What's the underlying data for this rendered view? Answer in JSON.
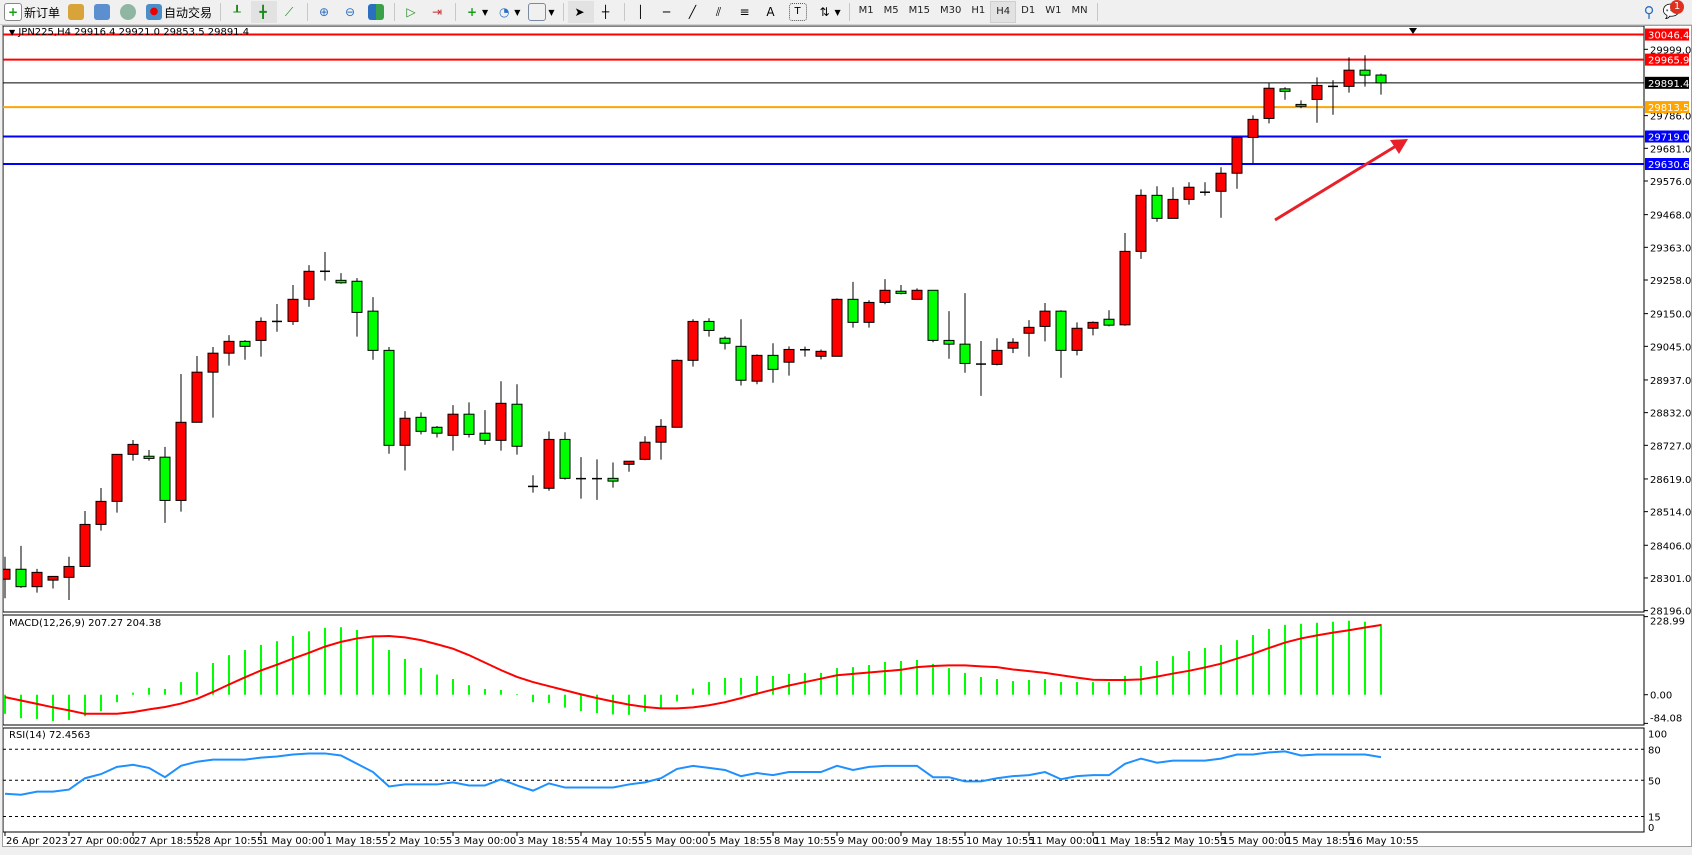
{
  "toolbar": {
    "new_order": "新订单",
    "auto_trading": "自动交易",
    "timeframes": [
      "M1",
      "M5",
      "M15",
      "M30",
      "H1",
      "H4",
      "D1",
      "W1",
      "MN"
    ],
    "active_timeframe": "H4",
    "notification_count": "1"
  },
  "chart": {
    "symbol_header": "JPN225,H4",
    "ohlc_header": "29916.4 29921.0 29853.5 29891.4",
    "colors": {
      "bull": "#ff0000",
      "bear": "#00ff00",
      "macd_hist": "#00ff00",
      "signal": "#ff0000",
      "rsi": "#1e90ff",
      "arrow": "#e8202a"
    },
    "levels": [
      {
        "price": "30046.4",
        "color": "#ff0000"
      },
      {
        "price": "29965.9",
        "color": "#ff0000"
      },
      {
        "price": "29891.4",
        "color": "#000000"
      },
      {
        "price": "29813.5",
        "color": "#ffa500"
      },
      {
        "price": "29719.0",
        "color": "#0000ff"
      },
      {
        "price": "29630.6",
        "color": "#0000ff"
      }
    ],
    "price_ticks": [
      "29999.0",
      "29786.0",
      "29681.0",
      "29576.0",
      "29468.0",
      "29363.0",
      "29258.0",
      "29150.0",
      "29045.0",
      "28937.0",
      "28832.0",
      "28727.0",
      "28619.0",
      "28514.0",
      "28406.0",
      "28301.0",
      "28196.0"
    ],
    "time_labels": [
      "26 Apr 2023",
      "27 Apr 00:00",
      "27 Apr 18:55",
      "28 Apr 10:55",
      "1 May 00:00",
      "1 May 18:55",
      "2 May 10:55",
      "3 May 00:00",
      "3 May 18:55",
      "4 May 10:55",
      "5 May 00:00",
      "5 May 18:55",
      "8 May 10:55",
      "9 May 00:00",
      "9 May 18:55",
      "10 May 10:55",
      "11 May 00:00",
      "11 May 18:55",
      "12 May 10:55",
      "15 May 00:00",
      "15 May 18:55",
      "16 May 10:55"
    ]
  },
  "macd": {
    "label": "MACD(12,26,9) 207.27 204.38",
    "axis_labels": [
      "228.99",
      "0.00",
      "-84.08"
    ]
  },
  "rsi": {
    "label": "RSI(14) 72.4563",
    "axis_labels": [
      "100",
      "80",
      "50",
      "15",
      "0"
    ]
  },
  "chart_data": {
    "type": "candlestick",
    "ohlc_columns": [
      "open",
      "high",
      "low",
      "close"
    ],
    "candles": [
      [
        28297,
        28369,
        28236,
        28329
      ],
      [
        28329,
        28404,
        28269,
        28273
      ],
      [
        28273,
        28330,
        28254,
        28319
      ],
      [
        28294,
        28306,
        28267,
        28306
      ],
      [
        28303,
        28369,
        28230,
        28338
      ],
      [
        28338,
        28516,
        28338,
        28473
      ],
      [
        28473,
        28590,
        28453,
        28547
      ],
      [
        28547,
        28698,
        28511,
        28698
      ],
      [
        28698,
        28744,
        28678,
        28730
      ],
      [
        28692,
        28712,
        28678,
        28685
      ],
      [
        28689,
        28722,
        28478,
        28550
      ],
      [
        28550,
        28956,
        28514,
        28801
      ],
      [
        28801,
        29014,
        28801,
        28962
      ],
      [
        28962,
        29043,
        28816,
        29023
      ],
      [
        29023,
        29081,
        28983,
        29061
      ],
      [
        29061,
        29065,
        29002,
        29045
      ],
      [
        29064,
        29138,
        29012,
        29125
      ],
      [
        29125,
        29181,
        29092,
        29125
      ],
      [
        29125,
        29242,
        29114,
        29196
      ],
      [
        29196,
        29306,
        29172,
        29286
      ],
      [
        29286,
        29348,
        29256,
        29286
      ],
      [
        29257,
        29280,
        29246,
        29249
      ],
      [
        29254,
        29264,
        29076,
        29154
      ],
      [
        29158,
        29203,
        29002,
        29032
      ],
      [
        29032,
        29043,
        28700,
        28727
      ],
      [
        28727,
        28837,
        28646,
        28814
      ],
      [
        28817,
        28833,
        28762,
        28772
      ],
      [
        28785,
        28789,
        28752,
        28766
      ],
      [
        28759,
        28856,
        28710,
        28827
      ],
      [
        28827,
        28865,
        28752,
        28762
      ],
      [
        28766,
        28840,
        28729,
        28743
      ],
      [
        28743,
        28933,
        28710,
        28862
      ],
      [
        28859,
        28923,
        28697,
        28724
      ],
      [
        28595,
        28631,
        28575,
        28595
      ],
      [
        28589,
        28772,
        28581,
        28746
      ],
      [
        28746,
        28769,
        28617,
        28621
      ],
      [
        28620,
        28689,
        28556,
        28620
      ],
      [
        28620,
        28682,
        28552,
        28620
      ],
      [
        28621,
        28672,
        28591,
        28612
      ],
      [
        28666,
        28676,
        28642,
        28676
      ],
      [
        28682,
        28756,
        28679,
        28737
      ],
      [
        28737,
        28811,
        28681,
        28788
      ],
      [
        28785,
        29003,
        28785,
        29000
      ],
      [
        29000,
        29132,
        28980,
        29125
      ],
      [
        29125,
        29135,
        29076,
        29096
      ],
      [
        29071,
        29077,
        29035,
        29055
      ],
      [
        29045,
        29132,
        28919,
        28936
      ],
      [
        28933,
        29019,
        28923,
        29016
      ],
      [
        29016,
        29055,
        28928,
        28971
      ],
      [
        28994,
        29045,
        28951,
        29035
      ],
      [
        29034,
        29044,
        29012,
        29034
      ],
      [
        29013,
        29035,
        29003,
        29029
      ],
      [
        29013,
        29199,
        29013,
        29196
      ],
      [
        29196,
        29252,
        29105,
        29122
      ],
      [
        29122,
        29193,
        29105,
        29186
      ],
      [
        29186,
        29261,
        29180,
        29225
      ],
      [
        29222,
        29242,
        29212,
        29215
      ],
      [
        29196,
        29231,
        29196,
        29225
      ],
      [
        29225,
        29225,
        29058,
        29064
      ],
      [
        29064,
        29158,
        29005,
        29052
      ],
      [
        29052,
        29216,
        28960,
        28990
      ],
      [
        28988,
        29062,
        28886,
        28988
      ],
      [
        28987,
        29071,
        28984,
        29032
      ],
      [
        29039,
        29071,
        29023,
        29058
      ],
      [
        29087,
        29129,
        29012,
        29106
      ],
      [
        29109,
        29184,
        29061,
        29158
      ],
      [
        29158,
        29161,
        28944,
        29032
      ],
      [
        29032,
        29122,
        29016,
        29103
      ],
      [
        29103,
        29125,
        29080,
        29122
      ],
      [
        29132,
        29161,
        29109,
        29113
      ],
      [
        29114,
        29409,
        29111,
        29350
      ],
      [
        29350,
        29549,
        29326,
        29530
      ],
      [
        29530,
        29559,
        29445,
        29456
      ],
      [
        29456,
        29556,
        29456,
        29517
      ],
      [
        29517,
        29572,
        29500,
        29556
      ],
      [
        29540,
        29572,
        29529,
        29540
      ],
      [
        29543,
        29620,
        29458,
        29601
      ],
      [
        29601,
        29716,
        29551,
        29716
      ],
      [
        29716,
        29787,
        29633,
        29774
      ],
      [
        29777,
        29890,
        29761,
        29874
      ],
      [
        29872,
        29877,
        29837,
        29864
      ],
      [
        29822,
        29835,
        29810,
        29816
      ],
      [
        29838,
        29909,
        29763,
        29883
      ],
      [
        29880,
        29900,
        29789,
        29880
      ],
      [
        29880,
        29973,
        29860,
        29932
      ],
      [
        29932,
        29980,
        29879,
        29916
      ],
      [
        29916.4,
        29921.0,
        29853.5,
        29891.4
      ]
    ],
    "price_range": [
      28196,
      30046.4
    ],
    "macd_hist": [
      -56,
      -69,
      -71,
      -77,
      -74,
      -63,
      -48,
      -22,
      6,
      20,
      17,
      37,
      66,
      93,
      116,
      131,
      146,
      157,
      172,
      186,
      196,
      198,
      190,
      169,
      131,
      105,
      78,
      59,
      46,
      28,
      17,
      14,
      2,
      -22,
      -24,
      -38,
      -48,
      -54,
      -58,
      -59,
      -50,
      -39,
      -20,
      18,
      37,
      49,
      49,
      55,
      55,
      61,
      64,
      64,
      78,
      81,
      87,
      96,
      99,
      102,
      90,
      78,
      64,
      52,
      46,
      40,
      43,
      46,
      37,
      37,
      37,
      37,
      55,
      84,
      99,
      113,
      128,
      137,
      146,
      160,
      175,
      193,
      205,
      208,
      211,
      214,
      217,
      214,
      207.27
    ],
    "macd_signal": [
      -7,
      -17,
      -27,
      -37,
      -46,
      -56,
      -56,
      -56,
      -51,
      -43,
      -36,
      -26,
      -12,
      8,
      30,
      51,
      71,
      88,
      106,
      123,
      141,
      155,
      165,
      171,
      172,
      168,
      160,
      148,
      135,
      116,
      94,
      72,
      52,
      37,
      25,
      13,
      1,
      -10,
      -20,
      -29,
      -36,
      -40,
      -40,
      -37,
      -31,
      -22,
      -10,
      3,
      15,
      27,
      37,
      47,
      57,
      61,
      65,
      69,
      73,
      81,
      84,
      86,
      86,
      83,
      81,
      74,
      69,
      64,
      57,
      50,
      44,
      43,
      43,
      45,
      53,
      62,
      70,
      80,
      91,
      106,
      120,
      137,
      153,
      165,
      174,
      182,
      189,
      197,
      204.38
    ],
    "macd_range": [
      -84.08,
      228.99
    ],
    "rsi": [
      37,
      36,
      39,
      39,
      41,
      52,
      56,
      63,
      65,
      62,
      53,
      64,
      68,
      70,
      70,
      70,
      72,
      73,
      75,
      76,
      76,
      74,
      66,
      58,
      44,
      46,
      46,
      46,
      48,
      45,
      45,
      51,
      45,
      40,
      47,
      43,
      43,
      43,
      43,
      46,
      48,
      52,
      61,
      64,
      62,
      60,
      54,
      57,
      55,
      58,
      58,
      58,
      64,
      60,
      63,
      64,
      64,
      64,
      53,
      53,
      49,
      49,
      52,
      54,
      55,
      58,
      51,
      54,
      55,
      55,
      66,
      71,
      67,
      69,
      69,
      69,
      71,
      75,
      75,
      77,
      78,
      74,
      75,
      75,
      75,
      75,
      72.4563
    ],
    "rsi_levels": [
      80,
      50,
      15
    ],
    "rsi_range": [
      0,
      100
    ],
    "annotation": {
      "type": "arrow",
      "from_price": 29462,
      "to_price": 29716
    }
  }
}
